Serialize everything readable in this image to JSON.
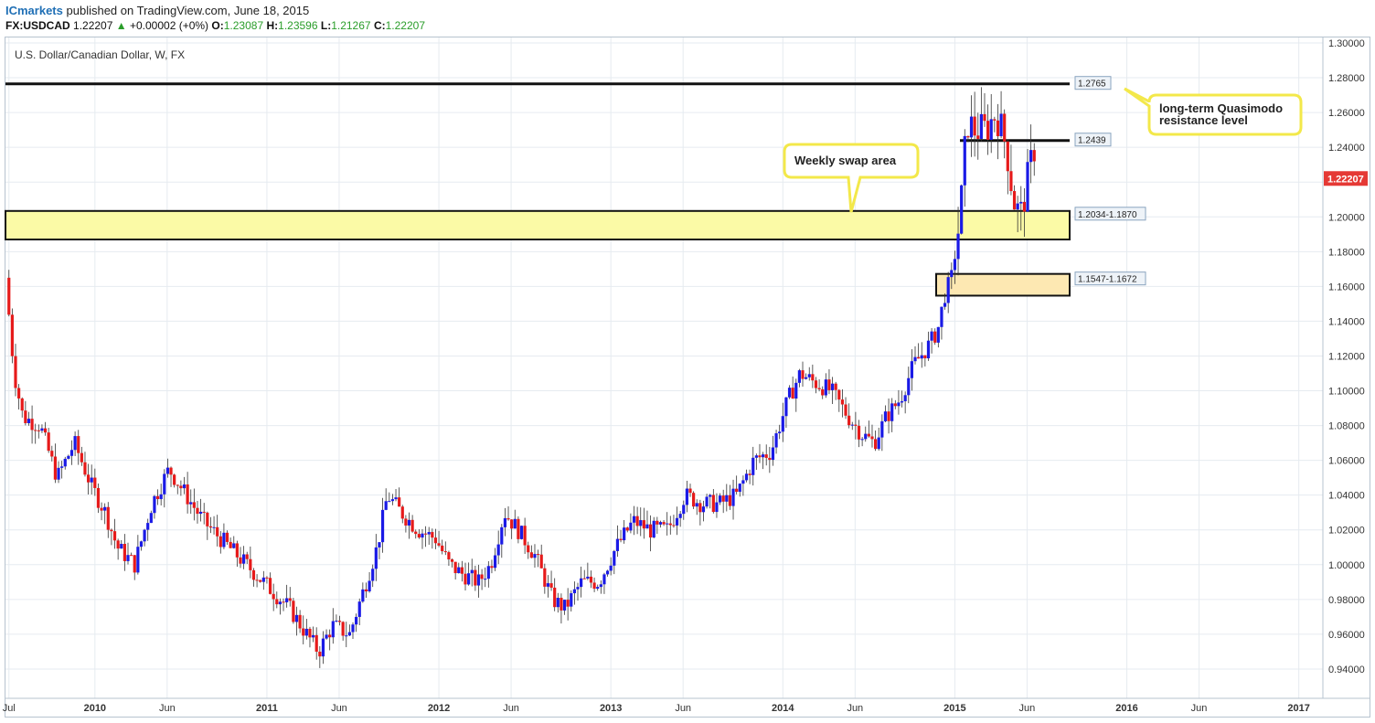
{
  "header": {
    "brand": "ICmarkets",
    "published": "published on TradingView.com, June 18, 2015",
    "symbol": "FX:USDCAD",
    "price": "1.22207",
    "change": "+0.00002 (+0%)",
    "o_label": "O:",
    "o_val": "1.23087",
    "h_label": "H:",
    "h_val": "1.23596",
    "l_label": "L:",
    "l_val": "1.21267",
    "c_label": "C:",
    "c_val": "1.22207"
  },
  "colors": {
    "up": "#1a1ae6",
    "down": "#e61a1a",
    "grid": "#e6ebf0",
    "zone_fill": "#fbfaa6",
    "zone2_fill": "#fde8b2",
    "callout_border": "#f3e84a",
    "price_tag": "#e53935"
  },
  "chart_data": {
    "type": "candlestick",
    "title": "U.S. Dollar/Canadian Dollar, W, FX",
    "ylim": [
      0.92,
      1.3
    ],
    "y_ticks": [
      "1.30000",
      "1.28000",
      "1.26000",
      "1.24000",
      "1.22000",
      "1.20000",
      "1.18000",
      "1.16000",
      "1.14000",
      "1.12000",
      "1.10000",
      "1.08000",
      "1.06000",
      "1.04000",
      "1.02000",
      "1.00000",
      "0.98000",
      "0.96000",
      "0.94000"
    ],
    "x_ticks": [
      {
        "label": "Jul",
        "t": 2009.5
      },
      {
        "label": "2010",
        "t": 2010.0
      },
      {
        "label": "Jun",
        "t": 2010.42
      },
      {
        "label": "2011",
        "t": 2011.0
      },
      {
        "label": "Jun",
        "t": 2011.42
      },
      {
        "label": "2012",
        "t": 2012.0
      },
      {
        "label": "Jun",
        "t": 2012.42
      },
      {
        "label": "2013",
        "t": 2013.0
      },
      {
        "label": "Jun",
        "t": 2013.42
      },
      {
        "label": "2014",
        "t": 2014.0
      },
      {
        "label": "Jun",
        "t": 2014.42
      },
      {
        "label": "2015",
        "t": 2015.0
      },
      {
        "label": "Jun",
        "t": 2015.42
      },
      {
        "label": "2016",
        "t": 2016.0
      },
      {
        "label": "Jun",
        "t": 2016.42
      },
      {
        "label": "2017",
        "t": 2017.0
      }
    ],
    "trend": [
      [
        2009.5,
        1.165
      ],
      [
        2009.55,
        1.11
      ],
      [
        2009.6,
        1.085
      ],
      [
        2009.7,
        1.08
      ],
      [
        2009.8,
        1.05
      ],
      [
        2009.9,
        1.07
      ],
      [
        2010.0,
        1.045
      ],
      [
        2010.08,
        1.03
      ],
      [
        2010.15,
        1.01
      ],
      [
        2010.25,
        1.0
      ],
      [
        2010.35,
        1.035
      ],
      [
        2010.45,
        1.055
      ],
      [
        2010.55,
        1.04
      ],
      [
        2010.65,
        1.025
      ],
      [
        2010.75,
        1.015
      ],
      [
        2010.85,
        1.005
      ],
      [
        2010.95,
        0.995
      ],
      [
        2011.05,
        0.985
      ],
      [
        2011.15,
        0.975
      ],
      [
        2011.25,
        0.96
      ],
      [
        2011.32,
        0.95
      ],
      [
        2011.4,
        0.965
      ],
      [
        2011.5,
        0.96
      ],
      [
        2011.58,
        0.985
      ],
      [
        2011.66,
        1.01
      ],
      [
        2011.72,
        1.04
      ],
      [
        2011.8,
        1.03
      ],
      [
        2011.9,
        1.02
      ],
      [
        2012.0,
        1.015
      ],
      [
        2012.08,
        1.0
      ],
      [
        2012.15,
        0.995
      ],
      [
        2012.25,
        0.99
      ],
      [
        2012.32,
        1.0
      ],
      [
        2012.4,
        1.03
      ],
      [
        2012.48,
        1.02
      ],
      [
        2012.58,
        1.005
      ],
      [
        2012.68,
        0.98
      ],
      [
        2012.75,
        0.975
      ],
      [
        2012.85,
        0.99
      ],
      [
        2012.95,
        0.99
      ],
      [
        2013.05,
        1.01
      ],
      [
        2013.15,
        1.025
      ],
      [
        2013.25,
        1.02
      ],
      [
        2013.35,
        1.02
      ],
      [
        2013.45,
        1.04
      ],
      [
        2013.55,
        1.035
      ],
      [
        2013.65,
        1.035
      ],
      [
        2013.75,
        1.04
      ],
      [
        2013.85,
        1.06
      ],
      [
        2013.95,
        1.065
      ],
      [
        2014.05,
        1.095
      ],
      [
        2014.12,
        1.11
      ],
      [
        2014.2,
        1.105
      ],
      [
        2014.3,
        1.1
      ],
      [
        2014.4,
        1.085
      ],
      [
        2014.48,
        1.075
      ],
      [
        2014.55,
        1.07
      ],
      [
        2014.62,
        1.085
      ],
      [
        2014.7,
        1.095
      ],
      [
        2014.78,
        1.115
      ],
      [
        2014.86,
        1.125
      ],
      [
        2014.92,
        1.135
      ],
      [
        2014.96,
        1.155
      ],
      [
        2015.0,
        1.165
      ],
      [
        2015.05,
        1.2
      ],
      [
        2015.09,
        1.255
      ],
      [
        2015.13,
        1.25
      ],
      [
        2015.2,
        1.25
      ],
      [
        2015.26,
        1.26
      ],
      [
        2015.32,
        1.24
      ],
      [
        2015.36,
        1.21
      ],
      [
        2015.4,
        1.2
      ],
      [
        2015.45,
        1.225
      ],
      [
        2015.48,
        1.24
      ],
      [
        2015.52,
        1.222
      ]
    ],
    "levels": [
      {
        "label": "1.2765",
        "value": 1.2765,
        "style": "line"
      },
      {
        "label": "1.2439",
        "value": 1.2439,
        "style": "line-short"
      }
    ],
    "zones": [
      {
        "label": "1.2034-1.1870",
        "top": 1.2034,
        "bottom": 1.187
      },
      {
        "label": "1.1547-1.1672",
        "top": 1.1672,
        "bottom": 1.1547
      }
    ],
    "last_price": "1.22207",
    "annotations": [
      {
        "text": "Weekly swap area"
      },
      {
        "text": "long-term Quasimodo resistance level"
      }
    ]
  }
}
